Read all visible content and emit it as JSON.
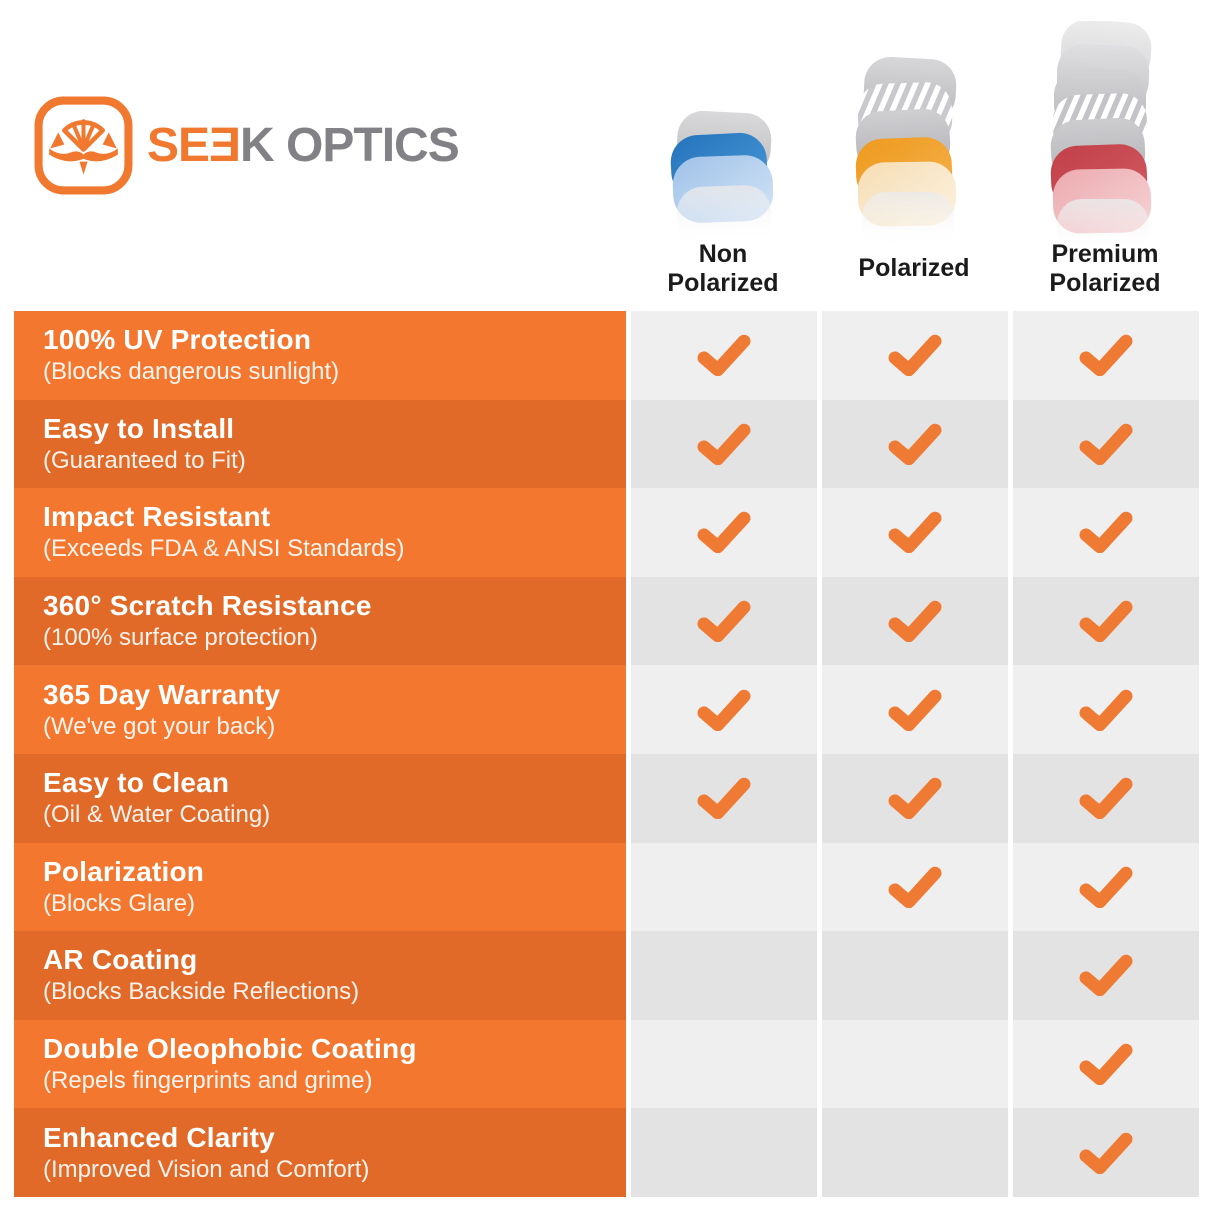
{
  "logo": {
    "icon": "seek-optics-goggles-icon",
    "text_primary": "SEƎ",
    "text_secondary": "K OPTICS"
  },
  "header": {
    "columns": [
      {
        "label": "Non\nPolarized",
        "lens_icon": "lens-stack-blue"
      },
      {
        "label": "Polarized",
        "lens_icon": "lens-stack-orange-striped"
      },
      {
        "label": "Premium\nPolarized",
        "lens_icon": "lens-stack-red-striped"
      }
    ]
  },
  "chart_data": {
    "type": "table",
    "columns": [
      "Non Polarized",
      "Polarized",
      "Premium Polarized"
    ],
    "rows": [
      {
        "feature": "100% UV Protection",
        "note": "(Blocks dangerous sunlight)",
        "checks": [
          true,
          true,
          true
        ]
      },
      {
        "feature": "Easy to Install",
        "note": "(Guaranteed to Fit)",
        "checks": [
          true,
          true,
          true
        ]
      },
      {
        "feature": "Impact Resistant",
        "note": "(Exceeds FDA & ANSI Standards)",
        "checks": [
          true,
          true,
          true
        ]
      },
      {
        "feature": "360° Scratch Resistance",
        "note": "(100% surface protection)",
        "checks": [
          true,
          true,
          true
        ]
      },
      {
        "feature": "365 Day Warranty",
        "note": "(We've got your back)",
        "checks": [
          true,
          true,
          true
        ]
      },
      {
        "feature": "Easy to Clean",
        "note": "(Oil & Water Coating)",
        "checks": [
          true,
          true,
          true
        ]
      },
      {
        "feature": "Polarization",
        "note": "(Blocks Glare)",
        "checks": [
          false,
          true,
          true
        ]
      },
      {
        "feature": "AR Coating",
        "note": "(Blocks Backside Reflections)",
        "checks": [
          false,
          false,
          true
        ]
      },
      {
        "feature": "Double Oleophobic Coating",
        "note": "(Repels fingerprints and grime)",
        "checks": [
          false,
          false,
          true
        ]
      },
      {
        "feature": "Enhanced Clarity",
        "note": "(Improved Vision and Comfort)",
        "checks": [
          false,
          false,
          true
        ]
      }
    ],
    "check_icon": "checkmark-icon"
  },
  "colors": {
    "brand_orange": "#F1782F",
    "logo_gray": "#828286",
    "header_text": "#1B1B1B",
    "row_orange_light": "#F4772F",
    "row_orange_dark": "#E16A28",
    "cell_gray_light": "#F0EFEF",
    "cell_gray_dark": "#E4E3E3",
    "check_orange": "#EE7A33",
    "lens_blue": "#2B80C6",
    "lens_blue_pale": "#B4D0EE",
    "lens_orange": "#F0A129",
    "lens_orange_pale": "#F8E3C2",
    "lens_red": "#C8474F",
    "lens_red_pale": "#EDAFB4",
    "lens_gray": "#C5C5C8"
  }
}
